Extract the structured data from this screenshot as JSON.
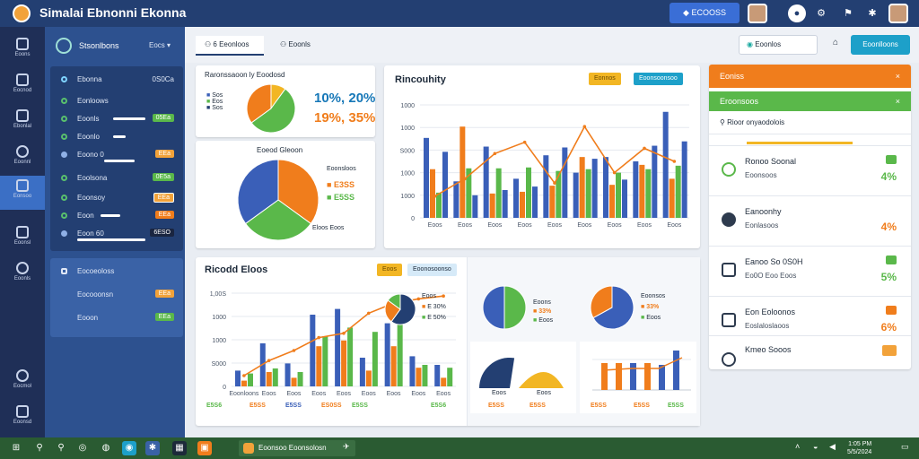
{
  "app": {
    "title": "Simalai Ebnonni Ekonna",
    "top_button": "ECOOSS"
  },
  "rail": {
    "items": [
      "Eoons",
      "Eocnod",
      "Ebonlal",
      "Eoonnl",
      "Eonsoo",
      "Eoonsl",
      "Eoonls",
      "Eocmol",
      "Eoonsd"
    ]
  },
  "sidebar": {
    "header": "Stsonlbons",
    "header_menu": "Eocs",
    "panel1_title": "Ebonna",
    "panel1_value": "0S0Ca",
    "rows1": [
      {
        "label": "Eonloows",
        "tag": ""
      },
      {
        "label": "Eoonls",
        "tag": "05Ea"
      },
      {
        "label": "Eoonlo",
        "tag": ""
      },
      {
        "label": "Eoono 0",
        "tag": "EEa"
      }
    ],
    "rows2": [
      {
        "label": "Eoolsona",
        "tag": "0E5a"
      },
      {
        "label": "Eoonsoy",
        "tag": "EEa"
      },
      {
        "label": "Eoon",
        "tag": "EEa"
      },
      {
        "label": "Eoon 60",
        "tag": "6ESO"
      }
    ],
    "panel2_title": "Eocoeoloss",
    "rows3": [
      {
        "label": "Eocooonsn",
        "tag": "EEa"
      },
      {
        "label": "Eooon",
        "tag": "EEa"
      }
    ]
  },
  "tabs": {
    "tab1": "6 Eeonloos",
    "tab2": "Eoonls"
  },
  "toolbar": {
    "search_label": "Eoonlos",
    "action_button": "Eoonlloons"
  },
  "card_pie1": {
    "title": "Raronssaoon ly Eoodosd",
    "legend": [
      "Sos",
      "Eos",
      "Sos"
    ],
    "value1": "10%, 20%",
    "value2": "19%, 35%"
  },
  "card_pie2": {
    "title": "Eoeod Gleoon",
    "legend_title": "Eoonsloos",
    "legend": [
      "E3SS",
      "E5SS"
    ],
    "footer": "Eloos Eoos"
  },
  "card_bar": {
    "title": "Rincouhity",
    "chip1": "Eonnos",
    "chip2": "Eoonsoonsoo",
    "yticks": [
      "1000",
      "1000",
      "S000",
      "1000",
      "1000",
      "0"
    ],
    "xticks": [
      "Eoos",
      "Eoos",
      "Eoos",
      "Eoos",
      "Eoos",
      "Eoos",
      "Eoos",
      "Eoos",
      "Eoos"
    ]
  },
  "card_bottom": {
    "title": "Ricodd Eloos",
    "chip1": "Eoos",
    "chip2": "Eoonosoonso",
    "yticks": [
      "1,00S",
      "1000",
      "1000",
      "S000",
      "0"
    ],
    "xticks": [
      "Eoonloons",
      "Eoos",
      "Eoos",
      "Eoos",
      "Eoos",
      "Eoos",
      "Eoos",
      "Eoos",
      "Eoos"
    ],
    "bottom_labels": [
      "E5S6",
      "E5SS",
      "E5SS",
      "ES0SS",
      "E5SS",
      "E5S6"
    ],
    "inset_legend": [
      "Eoos",
      "E 30%",
      "E 50%"
    ],
    "pie_a_labels": [
      "Eoons",
      "33%",
      "Eoos"
    ],
    "pie_b_labels": [
      "Eoonsos",
      "33%",
      "Eoos"
    ],
    "half_labels": [
      "Eoos",
      "Eoos"
    ],
    "half_bottom": [
      "E5SS",
      "E5SS"
    ],
    "bar2_bottom": [
      "E5SS",
      "E5SS",
      "E5SS"
    ]
  },
  "right_panel": {
    "header": "Eoniss",
    "subheader": "Eroonsoos",
    "search_placeholder": "Rioor onyaodolois",
    "items": [
      {
        "title": "Ronoo Soonal",
        "sub": "Eoonsoos",
        "value": "4%"
      },
      {
        "title": "Eanoonhy",
        "sub": "Eonlasoos",
        "value": "4%"
      },
      {
        "title": "Eanoo So 0S0H",
        "sub": "Eo0O Eoo Eoos",
        "value": "5%"
      },
      {
        "title": "Eon Eoloonos",
        "sub": "Eoslaloslaoos",
        "value": "6%"
      },
      {
        "title": "Kmeo Sooos",
        "sub": "",
        "value": ""
      }
    ]
  },
  "taskbar": {
    "app_label": "Eoonsoo Eoonsolosn",
    "clock": "1:05 PM",
    "date": "5/5/2024"
  },
  "colors": {
    "blue": "#3a5fb8",
    "orange": "#f07d1c",
    "green": "#5ab84a",
    "yellow": "#f2b624",
    "navy": "#233f72"
  },
  "chart_data": [
    {
      "type": "bar",
      "title": "Rincouhity",
      "categories": [
        "Eoos",
        "Eoos",
        "Eoos",
        "Eoos",
        "Eoos",
        "Eoos",
        "Eoos",
        "Eoos",
        "Eoos"
      ],
      "series": [
        {
          "values": [
            920,
            420,
            820,
            450,
            720,
            520,
            700,
            650,
            1220
          ]
        },
        {
          "values": [
            560,
            1050,
            280,
            300,
            370,
            700,
            380,
            610,
            450
          ]
        },
        {
          "values": [
            290,
            570,
            570,
            580,
            540,
            560,
            520,
            560,
            600
          ]
        },
        {
          "values": [
            760,
            260,
            320,
            360,
            810,
            680,
            440,
            830,
            880
          ]
        }
      ],
      "line": [
        250,
        450,
        740,
        870,
        400,
        1050,
        520,
        800,
        650
      ],
      "ylim": [
        0,
        1300
      ]
    },
    {
      "type": "bar",
      "title": "Ricodd Eloos",
      "categories": [
        "Eoonloons",
        "Eoos",
        "Eoos",
        "Eoos",
        "Eoos",
        "Eoos",
        "Eoos",
        "Eoos",
        "Eoos"
      ],
      "series": [
        {
          "values": [
            220,
            600,
            320,
            1000,
            1080,
            400,
            880,
            420,
            300
          ]
        },
        {
          "values": [
            80,
            200,
            120,
            560,
            640,
            220,
            560,
            260,
            120
          ]
        },
        {
          "values": [
            180,
            250,
            200,
            700,
            820,
            760,
            900,
            300,
            260
          ]
        }
      ],
      "line": [
        150,
        360,
        500,
        680,
        740,
        1020,
        1160,
        1220,
        1260
      ],
      "ylim": [
        0,
        1300
      ]
    },
    {
      "type": "pie",
      "title": "Raronssaoon ly Eoodosd",
      "values": [
        10,
        55,
        35
      ]
    },
    {
      "type": "pie",
      "title": "Eoeod Gleoon",
      "values": [
        35,
        30,
        35
      ]
    },
    {
      "type": "pie",
      "values": [
        50,
        50
      ]
    },
    {
      "type": "pie",
      "values": [
        67,
        33
      ]
    }
  ]
}
